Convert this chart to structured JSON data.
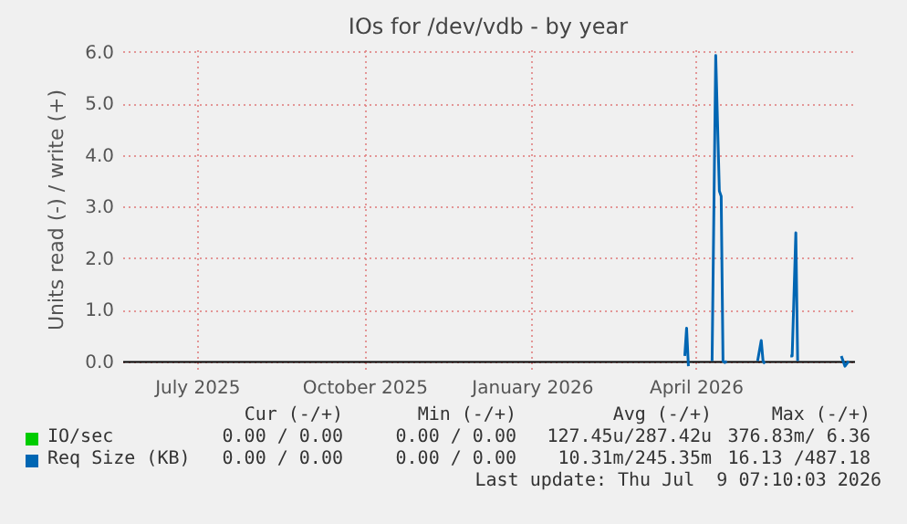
{
  "chart_data": {
    "type": "line",
    "title": "IOs for /dev/vdb - by year",
    "ylabel": "Units read (-) / write (+)",
    "xlim": [
      "2025-05-21",
      "2026-06-27"
    ],
    "ylim": [
      -0.15,
      6.05
    ],
    "xticks": [
      {
        "value": "2025-07-01",
        "label": "July 2025"
      },
      {
        "value": "2025-10-01",
        "label": "October 2025"
      },
      {
        "value": "2026-01-01",
        "label": "January 2026"
      },
      {
        "value": "2026-04-01",
        "label": "April 2026"
      }
    ],
    "yticks": [
      {
        "value": 0,
        "label": "0.0"
      },
      {
        "value": 1,
        "label": "1.0"
      },
      {
        "value": 2,
        "label": "2.0"
      },
      {
        "value": 3,
        "label": "3.0"
      },
      {
        "value": 4,
        "label": "4.0"
      },
      {
        "value": 5,
        "label": "5.0"
      },
      {
        "value": 6,
        "label": "6.0"
      }
    ],
    "x": [
      "2026-03-26",
      "2026-03-27",
      "2026-03-28",
      "2026-03-29",
      "2026-04-10",
      "2026-04-12",
      "2026-04-14",
      "2026-04-15",
      "2026-04-16",
      "2026-04-17",
      "2026-04-18",
      "2026-04-19",
      "2026-05-05",
      "2026-05-07",
      "2026-05-08",
      "2026-05-09",
      "2026-05-10",
      "2026-05-23",
      "2026-05-24",
      "2026-05-26",
      "2026-05-27",
      "2026-05-28",
      "2026-06-20",
      "2026-06-22",
      "2026-06-24"
    ],
    "series": [
      {
        "name": "IO/sec",
        "color": "#00cc00",
        "values": [
          null,
          null,
          null,
          null,
          null,
          null,
          null,
          null,
          null,
          null,
          null,
          null,
          null,
          null,
          null,
          null,
          null,
          null,
          null,
          null,
          null,
          null,
          null,
          null,
          null
        ]
      },
      {
        "name": "Req Size (KB)",
        "color": "#0066b3",
        "values": [
          0.1,
          0.64,
          -0.1,
          null,
          0.0,
          5.93,
          3.3,
          3.2,
          0.0,
          -0.03,
          0.0,
          null,
          0.0,
          0.4,
          0.0,
          -0.05,
          null,
          0.1,
          0.1,
          2.49,
          0.0,
          null,
          0.1,
          -0.1,
          0.0
        ]
      }
    ],
    "grid": true,
    "legend": "bottom",
    "line_style": "solid",
    "annotations": [
      "Cur (-/+)",
      "Min (-/+)",
      "Avg (-/+)",
      "Max (-/+)",
      "0.00 / 0.00",
      "0.00 / 0.00",
      "127.45u/287.42u",
      "376.83m/ 6.36",
      "0.00 / 0.00",
      "0.00 / 0.00",
      "10.31m/245.35m",
      "16.13 /487.18",
      "Last update: Thu Jul  9 07:10:03 2026"
    ]
  }
}
